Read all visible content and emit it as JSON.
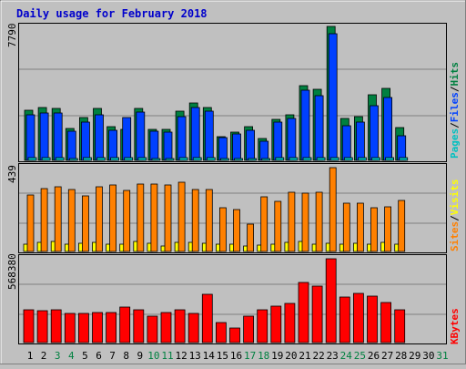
{
  "title": "Daily usage for February 2018",
  "colors": {
    "background": "#c0c0c0",
    "title": "#0000cc",
    "pages": "#00c0c0",
    "files": "#0040ff",
    "hits": "#008040",
    "visits": "#ffff00",
    "sites": "#ff8000",
    "kbytes": "#ff0000",
    "weekend_day": "#008040",
    "weekday": "#000000"
  },
  "chart_data": [
    {
      "type": "bar",
      "panel": "top",
      "max_label": "7790",
      "ylim": [
        0,
        7790
      ],
      "legend": [
        "Pages",
        "Files",
        "Hits"
      ],
      "legend_separators": [
        "/",
        "/"
      ],
      "categories": [
        "1",
        "2",
        "3",
        "4",
        "5",
        "6",
        "7",
        "8",
        "9",
        "10",
        "11",
        "12",
        "13",
        "14",
        "15",
        "16",
        "17",
        "18",
        "19",
        "20",
        "21",
        "22",
        "23",
        "24",
        "25",
        "26",
        "27",
        "28",
        "29",
        "30",
        "31"
      ],
      "weekend_days": [
        3,
        4,
        10,
        11,
        17,
        18,
        24,
        25,
        31
      ],
      "series": [
        {
          "name": "Hits",
          "values": [
            2900,
            3050,
            3000,
            1850,
            2500,
            3000,
            1950,
            1800,
            3000,
            1800,
            1800,
            2850,
            3350,
            3050,
            1400,
            1650,
            1950,
            1250,
            2400,
            2650,
            4350,
            4150,
            7790,
            2450,
            2550,
            3800,
            4200,
            1900,
            0,
            0,
            0
          ]
        },
        {
          "name": "Files",
          "values": [
            2650,
            2750,
            2750,
            1700,
            2200,
            2650,
            1750,
            2500,
            2800,
            1700,
            1650,
            2550,
            3050,
            2850,
            1300,
            1550,
            1750,
            1100,
            2200,
            2450,
            4100,
            3750,
            7350,
            2000,
            2200,
            3200,
            3650,
            1450,
            0,
            0,
            0
          ]
        },
        {
          "name": "Pages",
          "values": [
            150,
            160,
            170,
            130,
            140,
            160,
            150,
            140,
            160,
            120,
            130,
            150,
            170,
            160,
            110,
            120,
            130,
            100,
            140,
            150,
            160,
            160,
            170,
            150,
            150,
            160,
            170,
            140,
            0,
            0,
            0
          ]
        }
      ]
    },
    {
      "type": "bar",
      "panel": "middle",
      "max_label": "439",
      "ylim": [
        0,
        439
      ],
      "legend": [
        "Sites",
        "Visits"
      ],
      "legend_separators": [
        "/"
      ],
      "categories": [
        "1",
        "2",
        "3",
        "4",
        "5",
        "6",
        "7",
        "8",
        "9",
        "10",
        "11",
        "12",
        "13",
        "14",
        "15",
        "16",
        "17",
        "18",
        "19",
        "20",
        "21",
        "22",
        "23",
        "24",
        "25",
        "26",
        "27",
        "28",
        "29",
        "30",
        "31"
      ],
      "series": [
        {
          "name": "Sites",
          "values": [
            295,
            325,
            335,
            320,
            290,
            335,
            345,
            315,
            350,
            350,
            345,
            360,
            320,
            320,
            225,
            215,
            140,
            285,
            260,
            305,
            300,
            305,
            435,
            250,
            250,
            225,
            230,
            265,
            0,
            0,
            0
          ]
        },
        {
          "name": "Visits",
          "values": [
            40,
            48,
            50,
            40,
            42,
            48,
            40,
            38,
            50,
            42,
            30,
            45,
            45,
            42,
            38,
            40,
            30,
            35,
            40,
            45,
            50,
            40,
            42,
            40,
            42,
            38,
            45,
            40,
            0,
            0,
            0
          ]
        }
      ]
    },
    {
      "type": "bar",
      "panel": "bottom",
      "max_label": "568380",
      "ylim": [
        0,
        568380
      ],
      "legend": [
        "KBytes"
      ],
      "categories": [
        "1",
        "2",
        "3",
        "4",
        "5",
        "6",
        "7",
        "8",
        "9",
        "10",
        "11",
        "12",
        "13",
        "14",
        "15",
        "16",
        "17",
        "18",
        "19",
        "20",
        "21",
        "22",
        "23",
        "24",
        "25",
        "26",
        "27",
        "28",
        "29",
        "30",
        "31"
      ],
      "series": [
        {
          "name": "KBytes",
          "values": [
            225000,
            215000,
            220000,
            200000,
            195000,
            205000,
            205000,
            240000,
            225000,
            180000,
            205000,
            220000,
            195000,
            330000,
            135000,
            100000,
            180000,
            225000,
            245000,
            265000,
            410000,
            380000,
            568380,
            310000,
            335000,
            315000,
            270000,
            225000,
            0,
            0,
            0
          ]
        }
      ]
    }
  ]
}
